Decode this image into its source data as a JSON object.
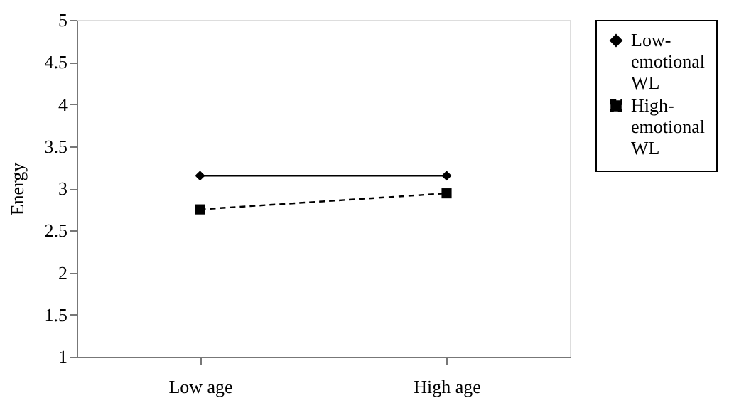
{
  "chart_data": {
    "type": "line",
    "ylabel": "Energy",
    "categories": [
      "Low age",
      "High age"
    ],
    "ylim": [
      1,
      5
    ],
    "yticks": [
      1,
      1.5,
      2,
      2.5,
      3,
      3.5,
      4,
      4.5,
      5
    ],
    "grid": false,
    "legend": "right",
    "series": [
      {
        "name": "Low-emotional WL",
        "color": "#000000",
        "values": [
          3.15,
          3.15
        ],
        "marker": "diamond",
        "line_style": "solid"
      },
      {
        "name": "High-emotional WL",
        "color": "#000000",
        "values": [
          2.75,
          2.94
        ],
        "marker": "square",
        "line_style": "dashed"
      }
    ]
  }
}
